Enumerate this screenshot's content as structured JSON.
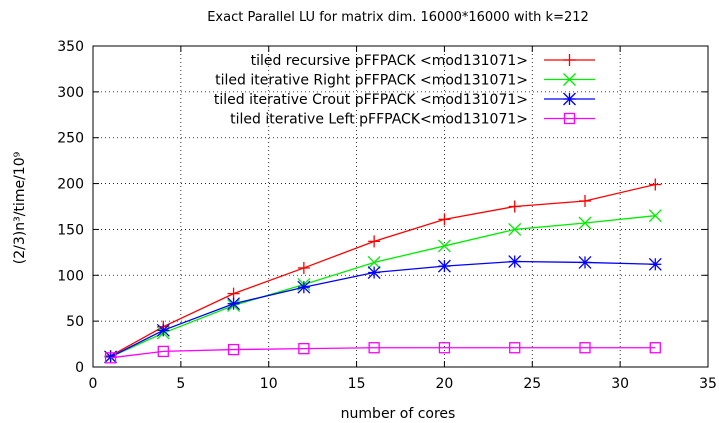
{
  "chart_data": {
    "type": "line",
    "title": "Exact Parallel LU for matrix dim. 16000*16000 with k=212",
    "xlabel": "number of cores",
    "ylabel": "(2/3)n³/time/10⁹",
    "xlim": [
      0,
      35
    ],
    "ylim": [
      0,
      350
    ],
    "xticks": [
      0,
      5,
      10,
      15,
      20,
      25,
      30,
      35
    ],
    "yticks": [
      0,
      50,
      100,
      150,
      200,
      250,
      300,
      350
    ],
    "grid": true,
    "legend_position": "top-right",
    "series": [
      {
        "name": "tiled recursive pFFPACK <mod131071>",
        "color": "#ff0000",
        "marker": "plus",
        "x": [
          1,
          4,
          8,
          12,
          16,
          20,
          24,
          28,
          32
        ],
        "y": [
          12,
          44,
          80,
          108,
          137,
          161,
          175,
          181,
          199
        ]
      },
      {
        "name": "tiled iterative Right pFFPACK <mod131071>",
        "color": "#00ee00",
        "marker": "cross",
        "x": [
          1,
          4,
          8,
          12,
          16,
          20,
          24,
          28,
          32
        ],
        "y": [
          11,
          37,
          67,
          90,
          114,
          132,
          150,
          157,
          165
        ]
      },
      {
        "name": "tiled iterative Crout pFFPACK <mod131071>",
        "color": "#0000ff",
        "marker": "star",
        "x": [
          1,
          4,
          8,
          12,
          16,
          20,
          24,
          28,
          32
        ],
        "y": [
          11,
          40,
          69,
          87,
          103,
          110,
          115,
          114,
          112
        ]
      },
      {
        "name": "tiled iterative Left pFFPACK<mod131071>",
        "color": "#ff00ff",
        "marker": "square",
        "x": [
          1,
          4,
          8,
          12,
          16,
          20,
          24,
          28,
          32
        ],
        "y": [
          10,
          17,
          19,
          20,
          21,
          21,
          21,
          21,
          21
        ]
      }
    ]
  }
}
